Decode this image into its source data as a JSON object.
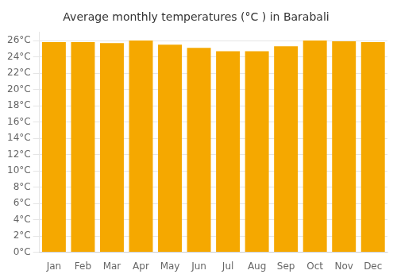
{
  "chart_data": {
    "type": "bar",
    "title": "Average monthly temperatures (°C ) in Barabali",
    "categories": [
      "Jan",
      "Feb",
      "Mar",
      "Apr",
      "May",
      "Jun",
      "Jul",
      "Aug",
      "Sep",
      "Oct",
      "Nov",
      "Dec"
    ],
    "values": [
      25.8,
      25.8,
      25.7,
      26.0,
      25.5,
      25.1,
      24.7,
      24.7,
      25.3,
      26.0,
      25.9,
      25.8
    ],
    "color": "#F5A800",
    "ylim": [
      0,
      27
    ],
    "yticks": [
      {
        "value": 0,
        "label": "0°C"
      },
      {
        "value": 2,
        "label": "2°C"
      },
      {
        "value": 4,
        "label": "4°C"
      },
      {
        "value": 6,
        "label": "6°C"
      },
      {
        "value": 8,
        "label": "8°C"
      },
      {
        "value": 10,
        "label": "10°C"
      },
      {
        "value": 12,
        "label": "12°C"
      },
      {
        "value": 14,
        "label": "14°C"
      },
      {
        "value": 16,
        "label": "16°C"
      },
      {
        "value": 18,
        "label": "18°C"
      },
      {
        "value": 20,
        "label": "20°C"
      },
      {
        "value": 22,
        "label": "22°C"
      },
      {
        "value": 24,
        "label": "24°C"
      },
      {
        "value": 26,
        "label": "26°C"
      }
    ],
    "grid": true
  }
}
